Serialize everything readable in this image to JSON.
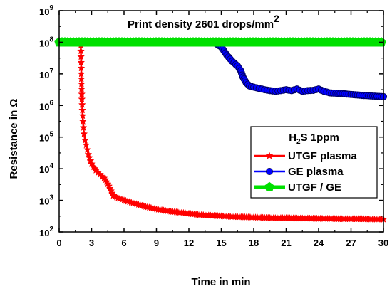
{
  "chart_data": {
    "type": "line",
    "title": "",
    "annotation": {
      "text": "Print density 2601 drops/mm",
      "superscript": "2"
    },
    "xlabel": "Time in min",
    "ylabel": "Resistance in Ω",
    "xlim": [
      0,
      30
    ],
    "ylim_log10": [
      2,
      9
    ],
    "y_scale": "log",
    "x_ticks": [
      "0",
      "3",
      "6",
      "9",
      "12",
      "15",
      "18",
      "21",
      "24",
      "27",
      "30"
    ],
    "y_ticks": [
      {
        "base": "10",
        "exp": "2"
      },
      {
        "base": "10",
        "exp": "3"
      },
      {
        "base": "10",
        "exp": "4"
      },
      {
        "base": "10",
        "exp": "5"
      },
      {
        "base": "10",
        "exp": "6"
      },
      {
        "base": "10",
        "exp": "7"
      },
      {
        "base": "10",
        "exp": "8"
      },
      {
        "base": "10",
        "exp": "9"
      }
    ],
    "legend": {
      "title": {
        "main": "H",
        "sub": "2",
        "rest": "S 1ppm"
      },
      "placement": "right-middle",
      "entries": [
        {
          "label": "UTGF plasma",
          "series": 0
        },
        {
          "label": "GE plasma",
          "series": 1
        },
        {
          "label": "UTGF / GE",
          "series": 2
        }
      ]
    },
    "series": [
      {
        "name": "UTGF plasma",
        "color": "#ff0000",
        "marker": "star",
        "x": [
          2.0,
          2.05,
          2.1,
          2.2,
          2.3,
          2.4,
          2.5,
          2.6,
          2.7,
          2.8,
          2.9,
          3.0,
          3.2,
          3.4,
          3.6,
          3.8,
          4.0,
          4.3,
          4.6,
          4.8,
          5.0,
          5.3,
          5.6,
          6.0,
          6.5,
          7.0,
          8.0,
          9.0,
          10.0,
          11.0,
          12.0,
          13.0,
          14.0,
          15.0,
          16.0,
          17.0,
          18.0,
          19.0,
          20.0,
          21.0,
          22.0,
          23.0,
          24.0,
          25.0,
          26.0,
          27.0,
          28.0,
          29.0,
          30.0
        ],
        "y_log10": [
          7.9,
          7.0,
          6.2,
          5.5,
          5.1,
          4.9,
          4.75,
          4.6,
          4.45,
          4.35,
          4.25,
          4.15,
          4.05,
          3.95,
          3.88,
          3.82,
          3.75,
          3.65,
          3.45,
          3.3,
          3.15,
          3.1,
          3.05,
          3.0,
          2.95,
          2.9,
          2.8,
          2.72,
          2.66,
          2.62,
          2.58,
          2.54,
          2.52,
          2.5,
          2.48,
          2.47,
          2.46,
          2.45,
          2.44,
          2.44,
          2.43,
          2.43,
          2.42,
          2.42,
          2.41,
          2.41,
          2.41,
          2.4,
          2.4
        ]
      },
      {
        "name": "GE plasma",
        "color": "#0000ff",
        "marker": "circle",
        "x": [
          14.0,
          14.5,
          15.0,
          15.5,
          16.0,
          16.5,
          16.8,
          17.0,
          17.3,
          17.6,
          18.0,
          18.5,
          19.0,
          19.5,
          20.0,
          20.5,
          21.0,
          21.5,
          22.0,
          22.5,
          23.0,
          23.5,
          24.0,
          24.5,
          25.0,
          26.0,
          27.0,
          28.0,
          29.0,
          30.0
        ],
        "y_log10": [
          8.02,
          7.96,
          7.85,
          7.6,
          7.4,
          7.25,
          7.1,
          6.9,
          6.72,
          6.62,
          6.58,
          6.54,
          6.5,
          6.47,
          6.45,
          6.47,
          6.5,
          6.47,
          6.52,
          6.45,
          6.47,
          6.48,
          6.52,
          6.45,
          6.4,
          6.38,
          6.35,
          6.32,
          6.3,
          6.28
        ]
      },
      {
        "name": "UTGF / GE",
        "color": "#00e000",
        "marker": "pentagon",
        "x": [
          0,
          30
        ],
        "y_log10": [
          8.0,
          8.0
        ]
      }
    ]
  }
}
